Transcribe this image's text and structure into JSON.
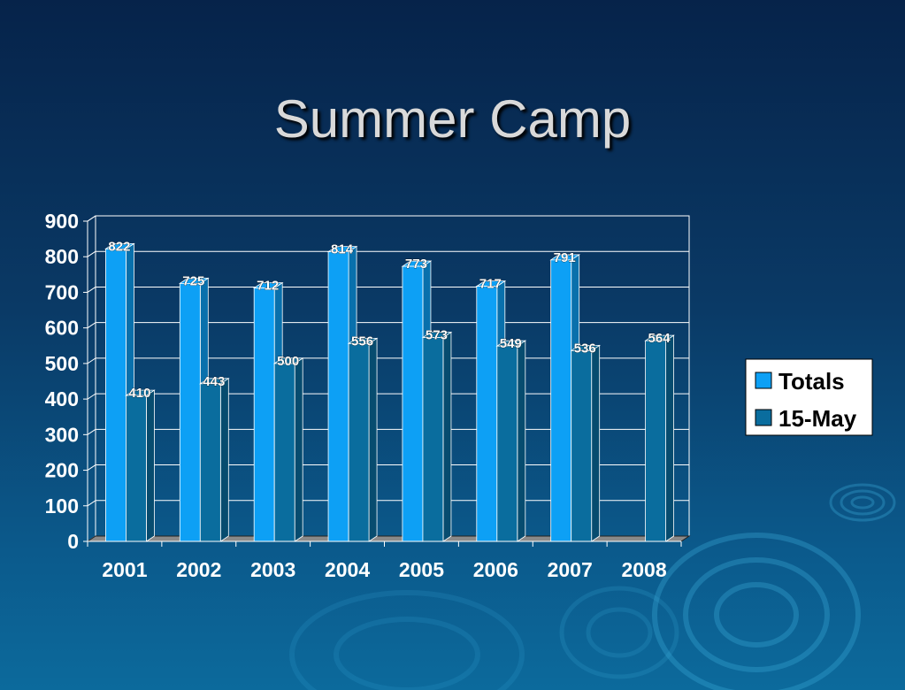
{
  "slide": {
    "title": "Summer Camp"
  },
  "chart_data": {
    "type": "bar",
    "title": "",
    "xlabel": "",
    "ylabel": "",
    "categories": [
      "2001",
      "2002",
      "2003",
      "2004",
      "2005",
      "2006",
      "2007",
      "2008"
    ],
    "series": [
      {
        "name": "Totals",
        "color": "#0da0f5",
        "values": [
          822,
          725,
          712,
          814,
          773,
          717,
          791,
          null
        ]
      },
      {
        "name": "15-May",
        "color": "#0a6d9e",
        "values": [
          410,
          443,
          500,
          556,
          573,
          549,
          536,
          564
        ]
      }
    ],
    "ylim": [
      0,
      900
    ],
    "yticks": [
      0,
      100,
      200,
      300,
      400,
      500,
      600,
      700,
      800,
      900
    ],
    "grid": true,
    "three_d": true,
    "data_labels": true,
    "legend_position": "right",
    "plot_background": "#ffffff",
    "gridline_color": "#ffffff"
  }
}
